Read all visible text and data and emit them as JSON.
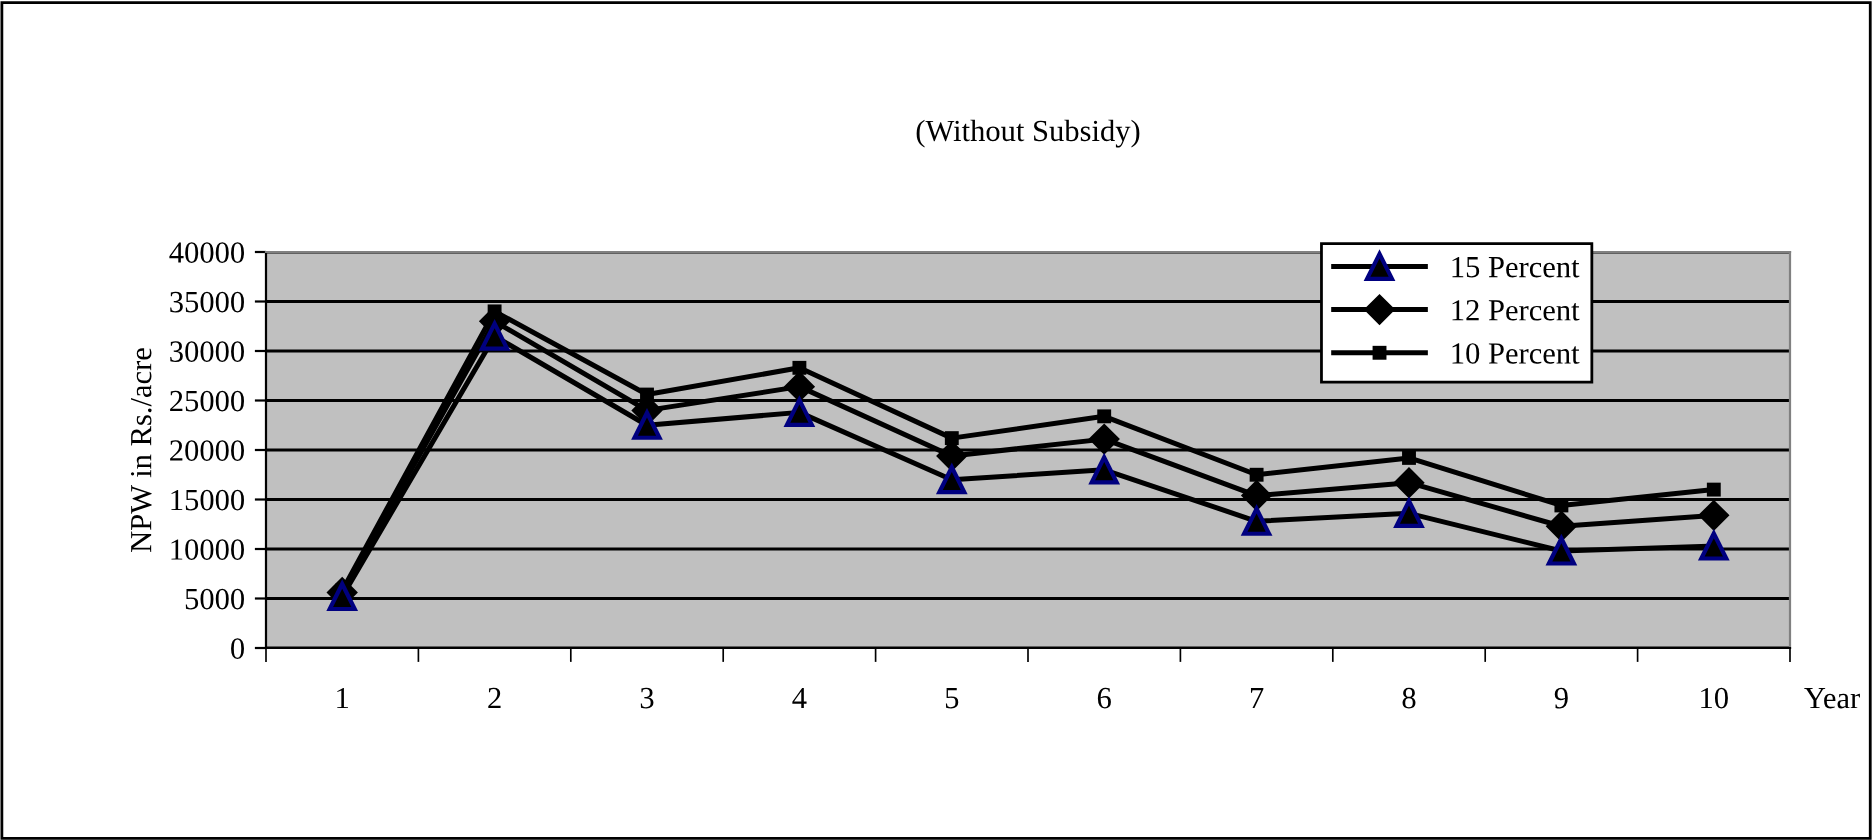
{
  "chart_data": {
    "type": "line",
    "title": "(Without Subsidy)",
    "xlabel": "Year",
    "ylabel": "NPW in Rs./acre",
    "categories": [
      "1",
      "2",
      "3",
      "4",
      "5",
      "6",
      "7",
      "8",
      "9",
      "10"
    ],
    "series": [
      {
        "name": "15 Percent",
        "color": "#000000",
        "marker": "triangle",
        "values": [
          5200,
          31500,
          22500,
          23800,
          17000,
          18000,
          12800,
          13600,
          9800,
          10300
        ]
      },
      {
        "name": "12 Percent",
        "color": "#000000",
        "marker": "diamond",
        "values": [
          5600,
          33000,
          24000,
          26400,
          19400,
          21100,
          15400,
          16700,
          12300,
          13400
        ]
      },
      {
        "name": "10 Percent",
        "color": "#000000",
        "marker": "square",
        "values": [
          5800,
          34000,
          25600,
          28300,
          21200,
          23400,
          17500,
          19200,
          14400,
          16000
        ]
      }
    ],
    "ylim": [
      0,
      40000
    ],
    "yticks": [
      0,
      5000,
      10000,
      15000,
      20000,
      25000,
      30000,
      35000,
      40000
    ],
    "grid": "y",
    "legend": "top right",
    "line_style": "solid"
  }
}
